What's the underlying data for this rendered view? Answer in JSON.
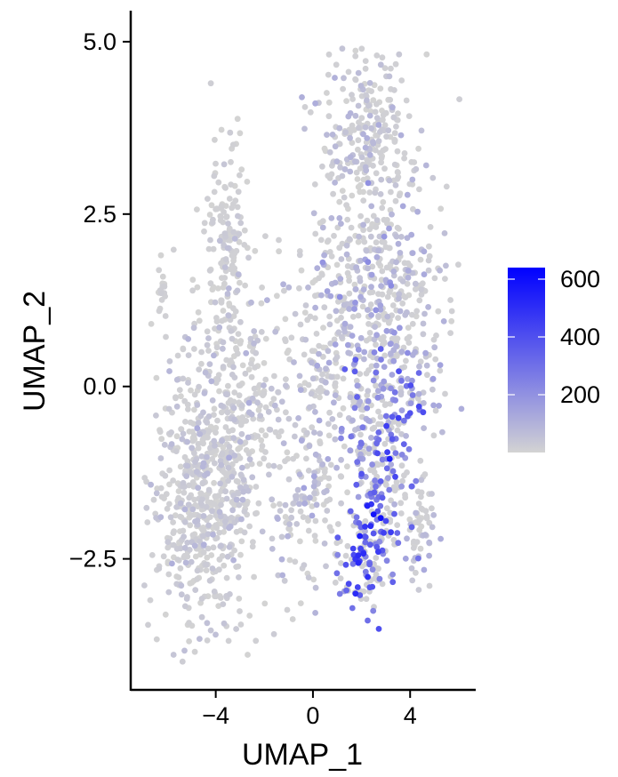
{
  "chart_data": {
    "type": "scatter",
    "xlabel": "UMAP_1",
    "ylabel": "UMAP_2",
    "xlim": [
      -7.5,
      6.7
    ],
    "ylim": [
      -4.4,
      5.45
    ],
    "x_ticks": [
      {
        "value": -4,
        "label": "−4"
      },
      {
        "value": 0,
        "label": "0"
      },
      {
        "value": 4,
        "label": "4"
      }
    ],
    "y_ticks": [
      {
        "value": 5.0,
        "label": "5.0"
      },
      {
        "value": 2.5,
        "label": "2.5"
      },
      {
        "value": 0.0,
        "label": "0.0"
      },
      {
        "value": -2.5,
        "label": "−2.5"
      }
    ],
    "color_scale": {
      "low_color": "#d3d3d3",
      "high_color": "#0000ff",
      "range": [
        0,
        640
      ],
      "ticks": [
        {
          "value": 200,
          "label": "200"
        },
        {
          "value": 400,
          "label": "400"
        },
        {
          "value": 600,
          "label": "600"
        }
      ]
    },
    "regions": [
      {
        "cx": -4.6,
        "cy": -1.7,
        "sx": 1.1,
        "sy": 0.95,
        "n": 520,
        "expr_mean": 25,
        "expr_sd": 30
      },
      {
        "cx": -3.2,
        "cy": -0.4,
        "sx": 1.1,
        "sy": 1.1,
        "n": 330,
        "expr_mean": 25,
        "expr_sd": 35
      },
      {
        "cx": -3.6,
        "cy": 2.2,
        "sx": 0.45,
        "sy": 0.7,
        "n": 130,
        "expr_mean": 15,
        "expr_sd": 25
      },
      {
        "cx": -6.2,
        "cy": 1.4,
        "sx": 0.12,
        "sy": 0.2,
        "n": 18,
        "expr_mean": 5,
        "expr_sd": 10
      },
      {
        "cx": 2.2,
        "cy": 3.6,
        "sx": 1.0,
        "sy": 0.7,
        "n": 260,
        "expr_mean": 40,
        "expr_sd": 40
      },
      {
        "cx": 3.0,
        "cy": 1.2,
        "sx": 1.3,
        "sy": 0.9,
        "n": 420,
        "expr_mean": 80,
        "expr_sd": 60
      },
      {
        "cx": 0.6,
        "cy": 0.3,
        "sx": 1.0,
        "sy": 0.8,
        "n": 180,
        "expr_mean": 45,
        "expr_sd": 45
      },
      {
        "cx": -0.2,
        "cy": -1.6,
        "sx": 0.7,
        "sy": 0.7,
        "n": 110,
        "expr_mean": 40,
        "expr_sd": 40
      },
      {
        "cx": 3.0,
        "cy": -0.7,
        "sx": 0.8,
        "sy": 0.7,
        "n": 170,
        "expr_mean": 230,
        "expr_sd": 90
      },
      {
        "cx": 2.6,
        "cy": -1.9,
        "sx": 0.55,
        "sy": 0.55,
        "n": 120,
        "expr_mean": 380,
        "expr_sd": 110
      },
      {
        "cx": 2.0,
        "cy": -2.6,
        "sx": 0.5,
        "sy": 0.3,
        "n": 70,
        "expr_mean": 330,
        "expr_sd": 100
      },
      {
        "cx": 4.4,
        "cy": -2.1,
        "sx": 0.3,
        "sy": 0.4,
        "n": 55,
        "expr_mean": 40,
        "expr_sd": 40
      }
    ]
  }
}
